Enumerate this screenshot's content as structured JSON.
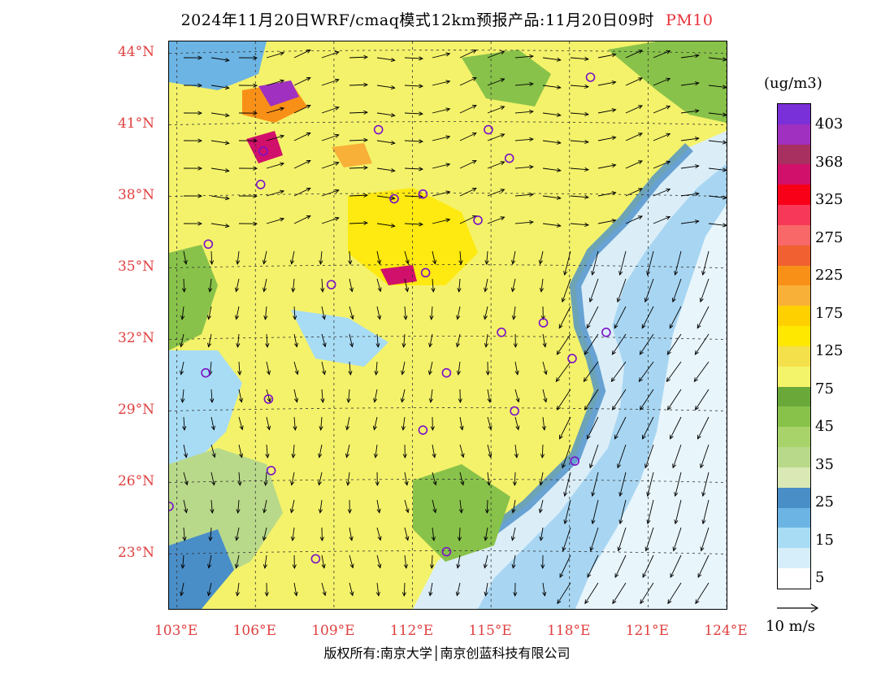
{
  "title": {
    "text": "2024年11月20日WRF/cmaq模式12km预报产品:11月20日09时",
    "pollutant": "PM10"
  },
  "lat_labels": [
    "44°N",
    "41°N",
    "38°N",
    "35°N",
    "32°N",
    "29°N",
    "26°N",
    "23°N"
  ],
  "lon_labels": [
    "103°E",
    "106°E",
    "109°E",
    "112°E",
    "115°E",
    "118°E",
    "121°E",
    "124°E"
  ],
  "legend": {
    "unit": "(ug/m3)",
    "colors": [
      "#ffffff",
      "#d6eefa",
      "#a8dcf5",
      "#6cb4e4",
      "#4a8ec8",
      "#d9e8b4",
      "#b9d98a",
      "#a8d36a",
      "#88c24a",
      "#6aa83a",
      "#f4f46a",
      "#f4e04a",
      "#ffe800",
      "#ffd000",
      "#f8b038",
      "#f89018",
      "#f06030",
      "#f86868",
      "#f83858",
      "#f80018",
      "#d0106a",
      "#a83060",
      "#a030c0",
      "#7a30d8"
    ],
    "labels": [
      "5",
      "15",
      "25",
      "35",
      "45",
      "75",
      "125",
      "175",
      "225",
      "275",
      "325",
      "368",
      "403"
    ]
  },
  "wind_reference": "10 m/s",
  "copyright": "版权所有:南京大学│南京创蓝科技有限公司",
  "cities": [
    {
      "lon": 118.8,
      "lat": 43.0
    },
    {
      "lon": 110.7,
      "lat": 40.8
    },
    {
      "lon": 114.9,
      "lat": 40.8
    },
    {
      "lon": 115.7,
      "lat": 39.6
    },
    {
      "lon": 106.3,
      "lat": 39.9
    },
    {
      "lon": 106.2,
      "lat": 38.5
    },
    {
      "lon": 111.3,
      "lat": 37.9
    },
    {
      "lon": 112.4,
      "lat": 38.1
    },
    {
      "lon": 114.5,
      "lat": 37.0
    },
    {
      "lon": 104.2,
      "lat": 36.0
    },
    {
      "lon": 112.5,
      "lat": 34.8
    },
    {
      "lon": 108.9,
      "lat": 34.3
    },
    {
      "lon": 117.0,
      "lat": 32.7
    },
    {
      "lon": 115.4,
      "lat": 32.3
    },
    {
      "lon": 119.4,
      "lat": 32.3
    },
    {
      "lon": 118.1,
      "lat": 31.2
    },
    {
      "lon": 104.1,
      "lat": 30.6
    },
    {
      "lon": 113.3,
      "lat": 30.6
    },
    {
      "lon": 106.5,
      "lat": 29.5
    },
    {
      "lon": 115.9,
      "lat": 29.0
    },
    {
      "lon": 112.4,
      "lat": 28.2
    },
    {
      "lon": 118.2,
      "lat": 26.9
    },
    {
      "lon": 106.6,
      "lat": 26.5
    },
    {
      "lon": 102.7,
      "lat": 25.0
    },
    {
      "lon": 108.3,
      "lat": 22.8
    },
    {
      "lon": 113.3,
      "lat": 23.1
    }
  ]
}
